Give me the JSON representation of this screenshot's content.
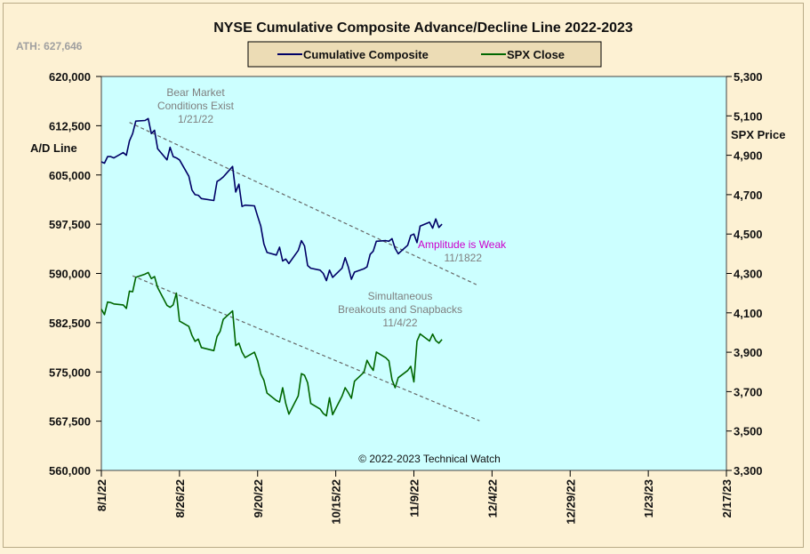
{
  "chart_data": {
    "type": "line",
    "title": "NYSE Cumulative  Composite  Advance/Decline  Line  2022-2023",
    "ath_label": "ATH:  627,646",
    "y_left_label": "A/D Line",
    "y_right_label": "SPX Price",
    "copyright": "© 2022-2023  Technical Watch",
    "legend_position": "top-center",
    "grid": false,
    "x_range": [
      "2022-08-01",
      "2023-02-17"
    ],
    "y_left_range": [
      560000,
      620000
    ],
    "y_right_range": [
      3300,
      5300
    ],
    "x_tick_labels": [
      "8/1/22",
      "8/26/22",
      "9/20/22",
      "10/15/22",
      "11/9/22",
      "12/4/22",
      "12/29/22",
      "1/23/23",
      "2/17/23"
    ],
    "y_left_tick_labels": [
      "620,000",
      "612,500",
      "605,000",
      "597,500",
      "590,000",
      "582,500",
      "575,000",
      "567,500",
      "560,000"
    ],
    "y_right_tick_labels": [
      "5,300",
      "5,100",
      "4,900",
      "4,700",
      "4,500",
      "4,300",
      "4,100",
      "3,900",
      "3,700",
      "3,500",
      "3,300"
    ],
    "colors": {
      "plot_background": "#ccffff",
      "page_background": "#fdf1d3",
      "legend_background": "#ecdcb5",
      "ad_line": "#000066",
      "spx_line": "#006600",
      "trendline": "#666666",
      "amplitude_text": "#cc00cc",
      "annotation_text": "#7f7f7f"
    },
    "series": [
      {
        "name": "Cumulative Composite",
        "axis": "left",
        "x": [
          "2022-08-01",
          "2022-08-02",
          "2022-08-03",
          "2022-08-04",
          "2022-08-05",
          "2022-08-08",
          "2022-08-09",
          "2022-08-10",
          "2022-08-11",
          "2022-08-12",
          "2022-08-15",
          "2022-08-16",
          "2022-08-17",
          "2022-08-18",
          "2022-08-19",
          "2022-08-22",
          "2022-08-23",
          "2022-08-24",
          "2022-08-25",
          "2022-08-26",
          "2022-08-29",
          "2022-08-30",
          "2022-08-31",
          "2022-09-01",
          "2022-09-02",
          "2022-09-06",
          "2022-09-07",
          "2022-09-08",
          "2022-09-09",
          "2022-09-12",
          "2022-09-13",
          "2022-09-14",
          "2022-09-15",
          "2022-09-16",
          "2022-09-19",
          "2022-09-20",
          "2022-09-21",
          "2022-09-22",
          "2022-09-23",
          "2022-09-26",
          "2022-09-27",
          "2022-09-28",
          "2022-09-29",
          "2022-09-30",
          "2022-10-03",
          "2022-10-04",
          "2022-10-05",
          "2022-10-06",
          "2022-10-07",
          "2022-10-10",
          "2022-10-11",
          "2022-10-12",
          "2022-10-13",
          "2022-10-14",
          "2022-10-17",
          "2022-10-18",
          "2022-10-19",
          "2022-10-20",
          "2022-10-21",
          "2022-10-24",
          "2022-10-25",
          "2022-10-26",
          "2022-10-27",
          "2022-10-28",
          "2022-10-31",
          "2022-11-01",
          "2022-11-02",
          "2022-11-03",
          "2022-11-04",
          "2022-11-07",
          "2022-11-08",
          "2022-11-09",
          "2022-11-10",
          "2022-11-11",
          "2022-11-14",
          "2022-11-15",
          "2022-11-16",
          "2022-11-17",
          "2022-11-18"
        ],
        "values": [
          607000,
          606800,
          607800,
          607800,
          607600,
          608400,
          608000,
          610200,
          611300,
          613200,
          613300,
          613600,
          611300,
          611800,
          609000,
          607300,
          609200,
          607800,
          607600,
          607300,
          604800,
          602700,
          602000,
          601900,
          601400,
          601100,
          604000,
          604300,
          604700,
          606300,
          602400,
          603600,
          600200,
          600400,
          600300,
          598700,
          597200,
          594500,
          593200,
          592800,
          594000,
          591900,
          592200,
          591500,
          593500,
          595000,
          594200,
          591200,
          590800,
          590500,
          590000,
          588900,
          590500,
          589400,
          590800,
          592400,
          591000,
          589100,
          590200,
          590700,
          591000,
          592900,
          593400,
          594900,
          595000,
          594900,
          595300,
          593800,
          593000,
          594300,
          595800,
          596000,
          594700,
          597200,
          597800,
          596900,
          598300,
          597000,
          597500
        ]
      },
      {
        "name": "SPX Close",
        "axis": "right",
        "x": [
          "2022-08-01",
          "2022-08-02",
          "2022-08-03",
          "2022-08-04",
          "2022-08-05",
          "2022-08-08",
          "2022-08-09",
          "2022-08-10",
          "2022-08-11",
          "2022-08-12",
          "2022-08-15",
          "2022-08-16",
          "2022-08-17",
          "2022-08-18",
          "2022-08-19",
          "2022-08-22",
          "2022-08-23",
          "2022-08-24",
          "2022-08-25",
          "2022-08-26",
          "2022-08-29",
          "2022-08-30",
          "2022-08-31",
          "2022-09-01",
          "2022-09-02",
          "2022-09-06",
          "2022-09-07",
          "2022-09-08",
          "2022-09-09",
          "2022-09-12",
          "2022-09-13",
          "2022-09-14",
          "2022-09-15",
          "2022-09-16",
          "2022-09-19",
          "2022-09-20",
          "2022-09-21",
          "2022-09-22",
          "2022-09-23",
          "2022-09-26",
          "2022-09-27",
          "2022-09-28",
          "2022-09-29",
          "2022-09-30",
          "2022-10-03",
          "2022-10-04",
          "2022-10-05",
          "2022-10-06",
          "2022-10-07",
          "2022-10-10",
          "2022-10-11",
          "2022-10-12",
          "2022-10-13",
          "2022-10-14",
          "2022-10-17",
          "2022-10-18",
          "2022-10-19",
          "2022-10-20",
          "2022-10-21",
          "2022-10-24",
          "2022-10-25",
          "2022-10-26",
          "2022-10-27",
          "2022-10-28",
          "2022-10-31",
          "2022-11-01",
          "2022-11-02",
          "2022-11-03",
          "2022-11-04",
          "2022-11-07",
          "2022-11-08",
          "2022-11-09",
          "2022-11-10",
          "2022-11-11",
          "2022-11-14",
          "2022-11-15",
          "2022-11-16",
          "2022-11-17",
          "2022-11-18"
        ],
        "values": [
          4119,
          4091,
          4155,
          4152,
          4145,
          4140,
          4122,
          4210,
          4207,
          4280,
          4297,
          4305,
          4274,
          4284,
          4228,
          4138,
          4128,
          4141,
          4200,
          4058,
          4031,
          3986,
          3955,
          3967,
          3924,
          3908,
          3980,
          4006,
          4067,
          4110,
          3933,
          3946,
          3901,
          3873,
          3900,
          3856,
          3790,
          3758,
          3693,
          3655,
          3647,
          3720,
          3640,
          3586,
          3678,
          3791,
          3783,
          3745,
          3640,
          3612,
          3589,
          3577,
          3669,
          3583,
          3677,
          3720,
          3695,
          3666,
          3753,
          3798,
          3859,
          3830,
          3808,
          3901,
          3872,
          3856,
          3760,
          3720,
          3771,
          3807,
          3828,
          3749,
          3956,
          3993,
          3957,
          3992,
          3959,
          3946,
          3965
        ]
      }
    ],
    "trendlines": [
      {
        "name": "A/D resistance",
        "axis": "left",
        "from": [
          "2022-08-10",
          613000
        ],
        "to": [
          "2022-11-29",
          588300
        ]
      },
      {
        "name": "SPX resistance",
        "axis": "right",
        "from": [
          "2022-08-11",
          4288
        ],
        "to": [
          "2022-11-30",
          3552
        ]
      }
    ],
    "annotations": [
      {
        "lines": [
          "Bear Market",
          "Conditions  Exist",
          "1/21/22"
        ],
        "color": "annotation"
      },
      {
        "lines": [
          "Amplitude  is Weak"
        ],
        "color": "amplitude"
      },
      {
        "lines": [
          "11/1822"
        ],
        "color": "annotation"
      },
      {
        "lines": [
          "Simultaneous",
          "Breakouts  and  Snapbacks",
          "11/4/22"
        ],
        "color": "annotation"
      }
    ]
  }
}
